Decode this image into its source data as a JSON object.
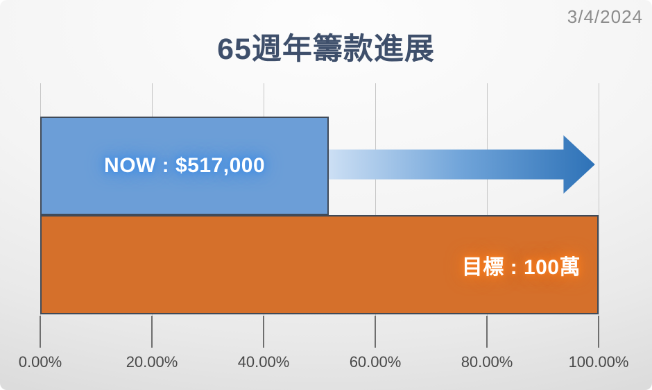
{
  "slide": {
    "date": "3/4/2024"
  },
  "colors": {
    "title": "#3E4F6B",
    "date": "#8C8C8C",
    "axis_label": "#474747",
    "grid": "#C6C6C6",
    "tick": "#6E6E6E",
    "bar_border": "#404A58",
    "glow_now": "#4690E4",
    "glow_goal": "#F47C22",
    "arrow_start": "#CCDFF4",
    "arrow_mid": "#70A4D9",
    "arrow_end": "#2E72B7"
  },
  "chart_data": {
    "type": "bar",
    "orientation": "horizontal",
    "title": "65週年籌款進展",
    "categories": [
      "NOW",
      "目標"
    ],
    "series": [
      {
        "name": "NOW",
        "label": "NOW : $517,000",
        "value_pct": 51.7,
        "amount": "$517,000",
        "color": "#6C9ED7"
      },
      {
        "name": "目標",
        "label": "目標 : 100萬",
        "value_pct": 100,
        "amount": "100萬",
        "color": "#D5702B"
      }
    ],
    "x_axis": {
      "min": 0,
      "max": 100,
      "format": "percent",
      "values": [
        0,
        20,
        40,
        60,
        80,
        100
      ],
      "ticks": [
        "0.00%",
        "20.00%",
        "40.00%",
        "60.00%",
        "80.00%",
        "100.00%"
      ]
    },
    "annotations": [
      {
        "name": "progress-arrow",
        "shape": "right-arrow",
        "from_pct": 51.7,
        "to_pct": 99.5,
        "meaning": "remaining amount toward goal"
      }
    ],
    "legend": "none",
    "grid": "vertical-major"
  }
}
